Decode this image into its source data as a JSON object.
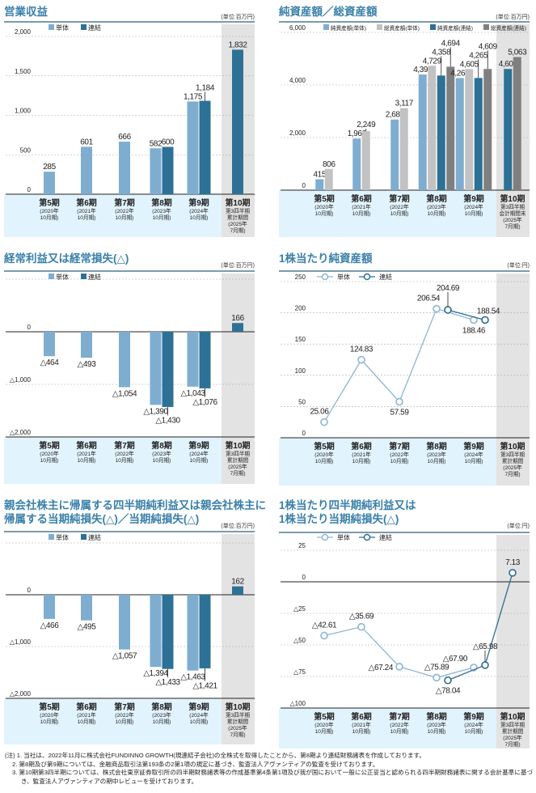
{
  "colors": {
    "title": "#3a80aa",
    "rule": "#2b5f7a",
    "single": "#7eadd0",
    "consolidated": "#2d7196",
    "total_single": "#c2c2c2",
    "total_consolidated": "#7f7f7f",
    "line_single": "#8db5d5",
    "line_consolidated": "#2e6d8e",
    "band": "#e1f3fc",
    "highlight": "#e3e3e3"
  },
  "categories": [
    {
      "name": "第5期",
      "sub": [
        "(2020年",
        "10月期)"
      ]
    },
    {
      "name": "第6期",
      "sub": [
        "(2021年",
        "10月期)"
      ]
    },
    {
      "name": "第7期",
      "sub": [
        "(2022年",
        "10月期)"
      ]
    },
    {
      "name": "第8期",
      "sub": [
        "(2023年",
        "10月期)"
      ]
    },
    {
      "name": "第9期",
      "sub": [
        "(2024年",
        "10月期)"
      ]
    },
    {
      "name": "第10期",
      "sub": [
        "第3四半期",
        "累計期間",
        "(2025年",
        "7月期)"
      ]
    }
  ],
  "categories_balance": [
    {
      "name": "第5期",
      "sub": [
        "(2020年",
        "10月期)"
      ]
    },
    {
      "name": "第6期",
      "sub": [
        "(2021年",
        "10月期)"
      ]
    },
    {
      "name": "第7期",
      "sub": [
        "(2022年",
        "10月期)"
      ]
    },
    {
      "name": "第8期",
      "sub": [
        "(2023年",
        "10月期)"
      ]
    },
    {
      "name": "第9期",
      "sub": [
        "(2024年",
        "10月期)"
      ]
    },
    {
      "name": "第10期",
      "sub": [
        "第3四半期",
        "会計期間末",
        "(2025年",
        "7月期)"
      ]
    }
  ],
  "chart_data": [
    {
      "type": "bar",
      "title": [
        "営業収益"
      ],
      "unit": "(単位:百万円)",
      "categories_key": "categories",
      "ylim": [
        0,
        2000
      ],
      "ticks": [
        0,
        500,
        1000,
        1500,
        2000
      ],
      "tick_labels": [
        "0",
        "500",
        "1,000",
        "1,500",
        "2,000"
      ],
      "series": [
        {
          "name": "単体",
          "color_key": "single",
          "values": [
            285,
            601,
            666,
            582,
            1175,
            null
          ],
          "labels": [
            "285",
            "601",
            "666",
            "582",
            "1,175",
            null
          ]
        },
        {
          "name": "連結",
          "color_key": "consolidated",
          "values": [
            null,
            null,
            null,
            600,
            1184,
            1832
          ],
          "labels": [
            null,
            null,
            null,
            "600",
            "1,184",
            "1,832"
          ]
        }
      ]
    },
    {
      "type": "bar",
      "title": [
        "純資産額／総資産額"
      ],
      "unit": "(単位:百万円)",
      "categories_key": "categories_balance",
      "ylim": [
        0,
        6000
      ],
      "ticks": [
        0,
        2000,
        4000,
        6000
      ],
      "tick_labels": [
        "0",
        "2,000",
        "4,000",
        "6,000"
      ],
      "series": [
        {
          "name": "純資産額(単体)",
          "color_key": "single",
          "values": [
            415,
            1963,
            2686,
            4397,
            4263,
            null
          ],
          "labels": [
            "415",
            "1,963",
            "2,686",
            "4,397",
            "4,263",
            null
          ]
        },
        {
          "name": "総資産額(単体)",
          "color_key": "total_single",
          "values": [
            806,
            2249,
            3117,
            4729,
            4605,
            null
          ],
          "labels": [
            "806",
            "2,249",
            "3,117",
            "4,729",
            "4,605",
            null
          ]
        },
        {
          "name": "純資産額(連結)",
          "color_key": "consolidated",
          "values": [
            null,
            null,
            null,
            4358,
            4265,
            4608
          ],
          "labels": [
            null,
            null,
            null,
            "4,358",
            "4,265",
            "4,608"
          ]
        },
        {
          "name": "総資産額(連結)",
          "color_key": "total_consolidated",
          "values": [
            null,
            null,
            null,
            4694,
            4609,
            5063
          ],
          "labels": [
            null,
            null,
            null,
            "4,694",
            "4,609",
            "5,063"
          ]
        }
      ]
    },
    {
      "type": "bar",
      "title": [
        "経常利益又は経常損失(△)"
      ],
      "unit": "(単位:百万円)",
      "categories_key": "categories",
      "ylim": [
        -2000,
        1000
      ],
      "ticks": [
        0,
        -1000,
        -2000
      ],
      "tick_labels": [
        "0",
        "△1,000",
        "△2,000"
      ],
      "series": [
        {
          "name": "単体",
          "color_key": "single",
          "values": [
            -464,
            -493,
            -1054,
            -1390,
            -1043,
            null
          ],
          "labels": [
            "△464",
            "△493",
            "△1,054",
            "△1,390",
            "△1,043",
            null
          ]
        },
        {
          "name": "連結",
          "color_key": "consolidated",
          "values": [
            null,
            null,
            null,
            -1430,
            -1076,
            166
          ],
          "labels": [
            null,
            null,
            null,
            "△1,430",
            "△1,076",
            "166"
          ]
        }
      ]
    },
    {
      "type": "line",
      "title": [
        "1株当たり純資産額"
      ],
      "unit": "(単位:円)",
      "categories_key": "categories",
      "ylim": [
        0,
        250
      ],
      "ticks": [
        0,
        50,
        100,
        150,
        200,
        250
      ],
      "tick_labels": [
        "0",
        "50",
        "100",
        "150",
        "200",
        "250"
      ],
      "series": [
        {
          "name": "単体",
          "color_key": "line_single",
          "values": [
            25.06,
            124.83,
            57.59,
            206.54,
            188.46,
            null
          ],
          "labels": [
            "25.06",
            "124.83",
            "57.59",
            "206.54",
            "188.46",
            null
          ]
        },
        {
          "name": "連結",
          "color_key": "line_consolidated",
          "values": [
            null,
            null,
            null,
            204.69,
            188.54,
            null
          ],
          "labels": [
            null,
            null,
            null,
            "204.69",
            "188.54",
            null
          ]
        }
      ]
    },
    {
      "type": "bar",
      "title": [
        "親会社株主に帰属する四半期純利益又は親会社株主に",
        "帰属する当期純損失(△)／当期純損失(△)"
      ],
      "unit": "(単位:百万円)",
      "categories_key": "categories",
      "ylim": [
        -2000,
        1000
      ],
      "ticks": [
        0,
        -1000,
        -2000
      ],
      "tick_labels": [
        "0",
        "△1,000",
        "△2,000"
      ],
      "series": [
        {
          "name": "単体",
          "color_key": "single",
          "values": [
            -466,
            -495,
            -1057,
            -1394,
            -1463,
            null
          ],
          "labels": [
            "△466",
            "△495",
            "△1,057",
            "△1,394",
            "△1,463",
            null
          ]
        },
        {
          "name": "連結",
          "color_key": "consolidated",
          "values": [
            null,
            null,
            null,
            -1433,
            -1421,
            162
          ],
          "labels": [
            null,
            null,
            null,
            "△1,433",
            "△1,421",
            "162"
          ]
        }
      ]
    },
    {
      "type": "line",
      "title": [
        "1株当たり四半期純利益又は",
        "1株当たり当期純損失(△)"
      ],
      "unit": "(単位:円)",
      "categories_key": "categories",
      "ylim": [
        -100,
        25
      ],
      "ticks": [
        25,
        0,
        -25,
        -50,
        -75,
        -100
      ],
      "tick_labels": [
        "25",
        "0",
        "△25",
        "△50",
        "△75",
        "△100"
      ],
      "series": [
        {
          "name": "単体",
          "color_key": "line_single",
          "values": [
            -42.61,
            -35.69,
            -67.24,
            -75.89,
            -67.9,
            null
          ],
          "labels": [
            "△42.61",
            "△35.69",
            "△67.24",
            "△75.89",
            "△67.90",
            null
          ]
        },
        {
          "name": "連結",
          "color_key": "line_consolidated",
          "values": [
            null,
            null,
            null,
            -78.04,
            -65.98,
            7.13
          ],
          "labels": [
            null,
            null,
            null,
            "△78.04",
            "△65.98",
            "7.13"
          ]
        }
      ]
    }
  ],
  "footnotes": {
    "prefix": "(注)",
    "items": [
      "1. 当社は、2022年11月に株式会社FUNDINNO GROWTH(現連結子会社)の全株式を取得したことから、第8期より連結財務諸表を作成しております。",
      "2. 第8期及び第9期については、金融商品取引法第193条の2第1項の規定に基づき、監査法人アヴァンティアの監査を受けております。",
      "3. 第10期第3四半期については、株式会社東京証券取引所の四半期財務諸表等の作成基準第4条第1項及び我が国において一般に公正妥当と認められる四半期財務諸表に関する会計基準に基づき、監査法人アヴァンティアの期中レビューを受けております。"
    ]
  }
}
